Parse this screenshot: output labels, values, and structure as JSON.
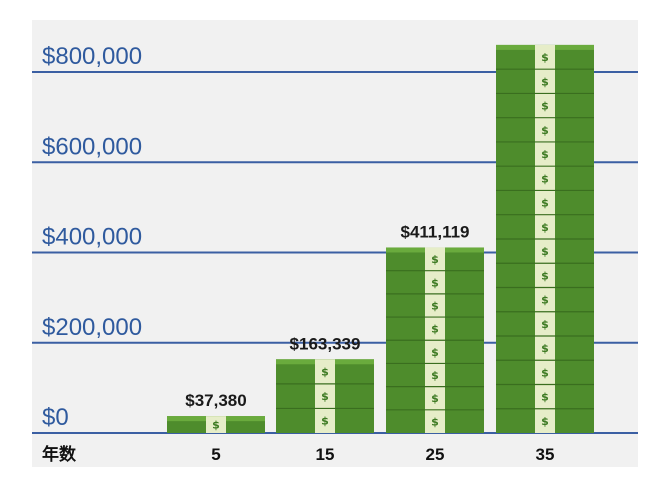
{
  "chart_data": {
    "type": "bar",
    "x_axis_title": "年数",
    "categories": [
      "5",
      "15",
      "25",
      "35"
    ],
    "values": [
      37380,
      163339,
      411119,
      860000
    ],
    "data_labels": [
      "$37,380",
      "$163,339",
      "$411,119",
      ""
    ],
    "y_ticks": [
      0,
      200000,
      400000,
      600000,
      800000
    ],
    "y_tick_labels": [
      "$0",
      "$200,000",
      "$400,000",
      "$600,000",
      "$800,000"
    ],
    "ylim": [
      0,
      830000
    ],
    "grid": true,
    "bar_style": "stacked-banknotes",
    "colors": {
      "gridline": "#3b5fa3",
      "tick_text": "#2f5a9e",
      "bill_dark": "#4e8c2c",
      "bill_light": "#6aab3d",
      "band": "#e6edc8"
    }
  }
}
